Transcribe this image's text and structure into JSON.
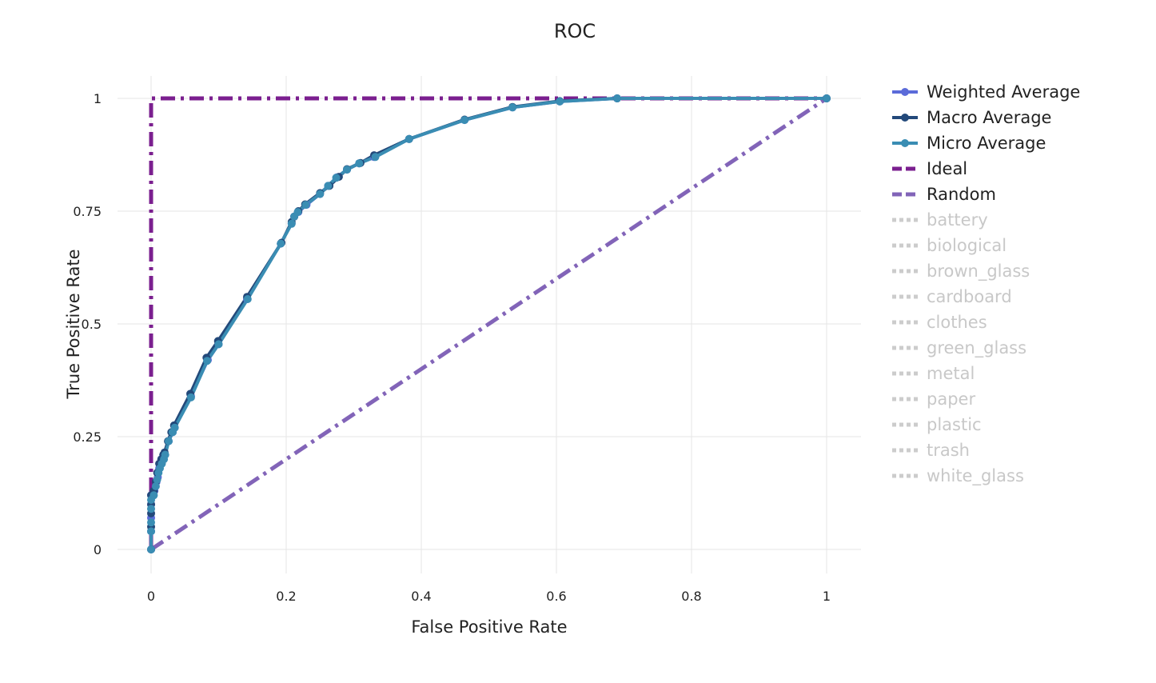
{
  "chart_data": {
    "type": "line",
    "title": "ROC",
    "xlabel": "False Positive Rate",
    "ylabel": "True Positive Rate",
    "xlim": [
      0,
      1
    ],
    "ylim": [
      0,
      1
    ],
    "x_ticks": [
      "0",
      "0.2",
      "0.4",
      "0.6",
      "0.8",
      "1"
    ],
    "y_ticks": [
      "0",
      "0.25",
      "0.5",
      "0.75",
      "1"
    ],
    "grid": true,
    "legend_position": "right",
    "series": [
      {
        "name": "Weighted Average",
        "color": "#5b6bd9",
        "style": "solid",
        "visible": true,
        "points": [
          [
            0,
            0
          ],
          [
            0,
            0.04
          ],
          [
            0,
            0.07
          ],
          [
            0,
            0.1
          ],
          [
            0,
            0.12
          ],
          [
            0.005,
            0.13
          ],
          [
            0.008,
            0.15
          ],
          [
            0.01,
            0.16
          ],
          [
            0.012,
            0.18
          ],
          [
            0.015,
            0.19
          ],
          [
            0.018,
            0.2
          ],
          [
            0.02,
            0.21
          ],
          [
            0.026,
            0.24
          ],
          [
            0.032,
            0.26
          ],
          [
            0.035,
            0.27
          ],
          [
            0.059,
            0.34
          ],
          [
            0.084,
            0.42
          ],
          [
            0.1,
            0.455
          ],
          [
            0.142,
            0.555
          ],
          [
            0.192,
            0.678
          ],
          [
            0.208,
            0.723
          ],
          [
            0.212,
            0.738
          ],
          [
            0.218,
            0.748
          ],
          [
            0.23,
            0.764
          ],
          [
            0.25,
            0.788
          ],
          [
            0.262,
            0.806
          ],
          [
            0.275,
            0.825
          ],
          [
            0.29,
            0.842
          ],
          [
            0.308,
            0.856
          ],
          [
            0.33,
            0.87
          ],
          [
            0.382,
            0.91
          ],
          [
            0.464,
            0.952
          ],
          [
            0.535,
            0.98
          ],
          [
            0.605,
            0.993
          ],
          [
            0.69,
            1.0
          ],
          [
            1.0,
            1.0
          ]
        ]
      },
      {
        "name": "Macro Average",
        "color": "#23497a",
        "style": "solid",
        "visible": true,
        "points": [
          [
            0,
            0
          ],
          [
            0,
            0.05
          ],
          [
            0,
            0.08
          ],
          [
            0,
            0.1
          ],
          [
            0,
            0.12
          ],
          [
            0.004,
            0.13
          ],
          [
            0.007,
            0.15
          ],
          [
            0.009,
            0.17
          ],
          [
            0.012,
            0.19
          ],
          [
            0.015,
            0.2
          ],
          [
            0.018,
            0.21
          ],
          [
            0.02,
            0.215
          ],
          [
            0.025,
            0.24
          ],
          [
            0.03,
            0.26
          ],
          [
            0.034,
            0.275
          ],
          [
            0.058,
            0.345
          ],
          [
            0.082,
            0.425
          ],
          [
            0.099,
            0.462
          ],
          [
            0.142,
            0.56
          ],
          [
            0.193,
            0.68
          ],
          [
            0.208,
            0.726
          ],
          [
            0.212,
            0.738
          ],
          [
            0.218,
            0.75
          ],
          [
            0.228,
            0.765
          ],
          [
            0.25,
            0.79
          ],
          [
            0.264,
            0.806
          ],
          [
            0.278,
            0.826
          ],
          [
            0.29,
            0.843
          ],
          [
            0.31,
            0.857
          ],
          [
            0.33,
            0.874
          ],
          [
            0.382,
            0.91
          ],
          [
            0.464,
            0.953
          ],
          [
            0.535,
            0.981
          ],
          [
            0.605,
            0.994
          ],
          [
            0.69,
            1.0
          ],
          [
            1.0,
            1.0
          ]
        ]
      },
      {
        "name": "Micro Average",
        "color": "#3a8db3",
        "style": "solid",
        "visible": true,
        "points": [
          [
            0,
            0
          ],
          [
            0,
            0.04
          ],
          [
            0,
            0.06
          ],
          [
            0,
            0.09
          ],
          [
            0,
            0.11
          ],
          [
            0.004,
            0.12
          ],
          [
            0.007,
            0.14
          ],
          [
            0.009,
            0.155
          ],
          [
            0.011,
            0.17
          ],
          [
            0.013,
            0.18
          ],
          [
            0.016,
            0.19
          ],
          [
            0.019,
            0.2
          ],
          [
            0.021,
            0.21
          ],
          [
            0.026,
            0.24
          ],
          [
            0.032,
            0.26
          ],
          [
            0.035,
            0.27
          ],
          [
            0.059,
            0.337
          ],
          [
            0.083,
            0.418
          ],
          [
            0.1,
            0.455
          ],
          [
            0.143,
            0.555
          ],
          [
            0.192,
            0.678
          ],
          [
            0.208,
            0.722
          ],
          [
            0.212,
            0.738
          ],
          [
            0.217,
            0.748
          ],
          [
            0.229,
            0.764
          ],
          [
            0.25,
            0.788
          ],
          [
            0.262,
            0.806
          ],
          [
            0.274,
            0.824
          ],
          [
            0.29,
            0.842
          ],
          [
            0.308,
            0.856
          ],
          [
            0.332,
            0.87
          ],
          [
            0.382,
            0.91
          ],
          [
            0.464,
            0.952
          ],
          [
            0.535,
            0.98
          ],
          [
            0.605,
            0.993
          ],
          [
            0.69,
            1.0
          ],
          [
            1.0,
            1.0
          ]
        ]
      },
      {
        "name": "Ideal",
        "color": "#7b1f8f",
        "style": "dashdot",
        "visible": true,
        "points": [
          [
            0,
            0
          ],
          [
            0,
            1
          ],
          [
            1,
            1
          ]
        ]
      },
      {
        "name": "Random",
        "color": "#8264b8",
        "style": "dashdot",
        "visible": true,
        "points": [
          [
            0,
            0
          ],
          [
            1,
            1
          ]
        ]
      },
      {
        "name": "battery",
        "color": "#cccccc",
        "style": "dot",
        "visible": false,
        "points": []
      },
      {
        "name": "biological",
        "color": "#cccccc",
        "style": "dot",
        "visible": false,
        "points": []
      },
      {
        "name": "brown_glass",
        "color": "#cccccc",
        "style": "dot",
        "visible": false,
        "points": []
      },
      {
        "name": "cardboard",
        "color": "#cccccc",
        "style": "dot",
        "visible": false,
        "points": []
      },
      {
        "name": "clothes",
        "color": "#cccccc",
        "style": "dot",
        "visible": false,
        "points": []
      },
      {
        "name": "green_glass",
        "color": "#cccccc",
        "style": "dot",
        "visible": false,
        "points": []
      },
      {
        "name": "metal",
        "color": "#cccccc",
        "style": "dot",
        "visible": false,
        "points": []
      },
      {
        "name": "paper",
        "color": "#cccccc",
        "style": "dot",
        "visible": false,
        "points": []
      },
      {
        "name": "plastic",
        "color": "#cccccc",
        "style": "dot",
        "visible": false,
        "points": []
      },
      {
        "name": "trash",
        "color": "#cccccc",
        "style": "dot",
        "visible": false,
        "points": []
      },
      {
        "name": "white_glass",
        "color": "#cccccc",
        "style": "dot",
        "visible": false,
        "points": []
      }
    ]
  }
}
